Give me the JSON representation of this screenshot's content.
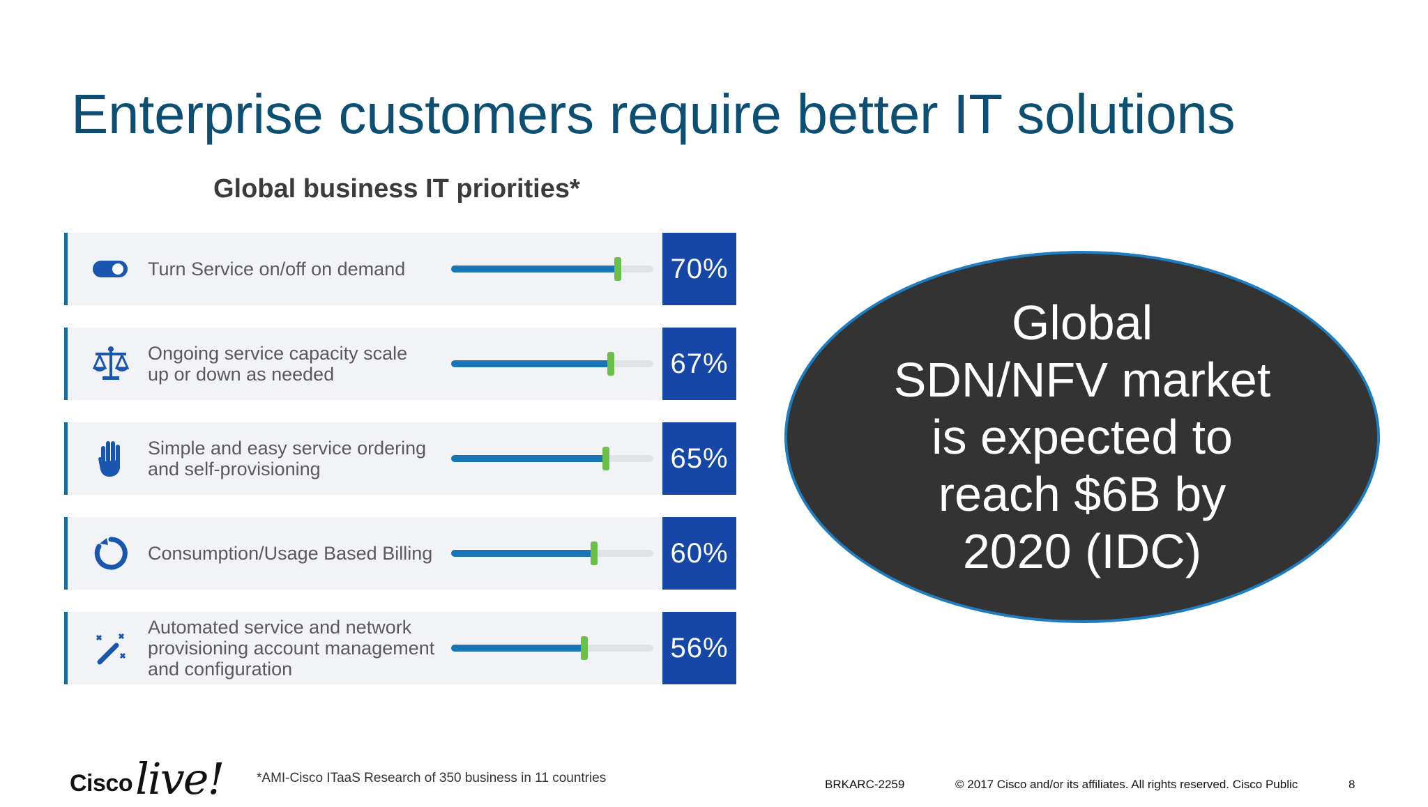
{
  "slide": {
    "title": "Enterprise customers require better IT solutions",
    "subtitle": "Global business IT priorities*",
    "colors": {
      "title": "#0d4f73",
      "bar_fill": "#1a75b5",
      "marker": "#6cc04a",
      "pct_box": "#1747a6",
      "ellipse_bg": "#333333",
      "ellipse_border": "#1e7cc1"
    }
  },
  "priorities": [
    {
      "icon": "toggle-icon",
      "label": "Turn Service on/off on demand",
      "value": 70,
      "value_text": "70%"
    },
    {
      "icon": "scale-icon",
      "label": "Ongoing service capacity scale\nup or down as needed",
      "value": 67,
      "value_text": "67%"
    },
    {
      "icon": "hand-icon",
      "label": "Simple and easy service ordering\nand self-provisioning",
      "value": 65,
      "value_text": "65%"
    },
    {
      "icon": "circle-arrow-icon",
      "label": "Consumption/Usage Based Billing",
      "value": 60,
      "value_text": "60%"
    },
    {
      "icon": "magic-wand-icon",
      "label": "Automated service and network\nprovisioning account management\nand configuration",
      "value": 56,
      "value_text": "56%"
    }
  ],
  "callout": {
    "text": "Global\nSDN/NFV market\nis expected to\nreach $6B by\n2020 (IDC)"
  },
  "footer": {
    "logo_cisco": "Cisco",
    "logo_live": "live!",
    "footnote": "*AMI-Cisco ITaaS Research of 350 business in 11 countries",
    "session_code": "BRKARC-2259",
    "copyright": "© 2017  Cisco and/or its affiliates. All rights reserved.   Cisco Public",
    "page_number": "8"
  }
}
